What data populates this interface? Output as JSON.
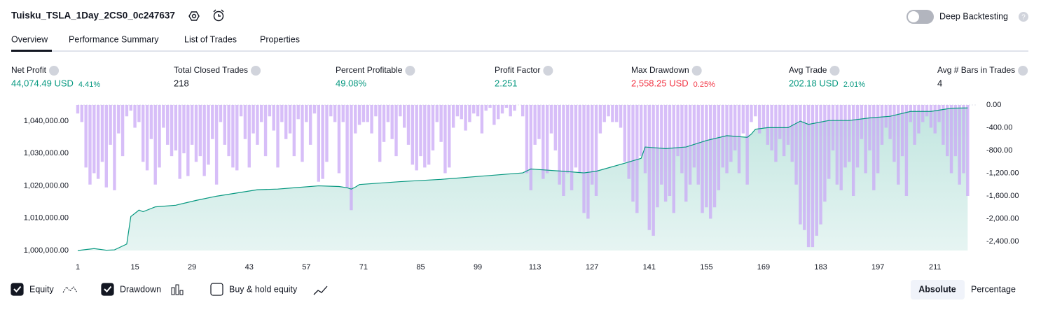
{
  "header": {
    "title": "Tuisku_TSLA_1Day_2CS0_0c247637",
    "deep_backtesting": "Deep Backtesting"
  },
  "tabs": [
    "Overview",
    "Performance Summary",
    "List of Trades",
    "Properties"
  ],
  "metrics": [
    {
      "label": "Net Profit",
      "value": "44,074.49 USD",
      "pct": "4.41%"
    },
    {
      "label": "Total Closed Trades",
      "value": "218"
    },
    {
      "label": "Percent Profitable",
      "value": "49.08%"
    },
    {
      "label": "Profit Factor",
      "value": "2.251"
    },
    {
      "label": "Max Drawdown",
      "value": "2,558.25 USD",
      "pct": "0.25%"
    },
    {
      "label": "Avg Trade",
      "value": "202.18 USD",
      "pct": "2.01%"
    },
    {
      "label": "Avg # Bars in Trades",
      "value": "4"
    }
  ],
  "chart_data": {
    "type": "equity-drawdown",
    "xlim": [
      1,
      221
    ],
    "xticks": [
      1,
      15,
      29,
      43,
      57,
      71,
      85,
      99,
      113,
      127,
      141,
      155,
      169,
      183,
      197,
      211
    ],
    "ylim": [
      1000000,
      1045000
    ],
    "yticks": [
      {
        "value": 1000000,
        "label": "1,000,000.00"
      },
      {
        "value": 1010000,
        "label": "1,010,000.00"
      },
      {
        "value": 1020000,
        "label": "1,020,000.00"
      },
      {
        "value": 1030000,
        "label": "1,030,000.00"
      },
      {
        "value": 1040000,
        "label": "1,040,000.00"
      }
    ],
    "y2lim": [
      -2560,
      0
    ],
    "y2ticks": [
      {
        "value": 0,
        "label": "0.00"
      },
      {
        "value": -400,
        "label": "-400.00"
      },
      {
        "value": -800,
        "label": "-800.00"
      },
      {
        "value": -1200,
        "label": "-1,200.00"
      },
      {
        "value": -1600,
        "label": "-1,600.00"
      },
      {
        "value": -2000,
        "label": "-2,000.00"
      },
      {
        "value": -2400,
        "label": "-2,400.00"
      }
    ],
    "series": [
      {
        "name": "Equity",
        "color": "#089981",
        "x": [
          1,
          5,
          8,
          10,
          13,
          14,
          15,
          16,
          17,
          20,
          25,
          30,
          35,
          40,
          45,
          50,
          55,
          60,
          65,
          67,
          68,
          69,
          70,
          80,
          90,
          100,
          110,
          112,
          120,
          125,
          128,
          135,
          139,
          140,
          145,
          150,
          155,
          160,
          165,
          166,
          167,
          170,
          175,
          178,
          180,
          185,
          190,
          195,
          200,
          205,
          210,
          215,
          219
        ],
        "values": [
          1000000,
          1000600,
          1000100,
          1000200,
          1002000,
          1010500,
          1011500,
          1012500,
          1012000,
          1013500,
          1014000,
          1015500,
          1016800,
          1017800,
          1018800,
          1019000,
          1019500,
          1020000,
          1019800,
          1019400,
          1019000,
          1019600,
          1020400,
          1021300,
          1022000,
          1023000,
          1024000,
          1025200,
          1024500,
          1024000,
          1024500,
          1027000,
          1028500,
          1032000,
          1031500,
          1032000,
          1034000,
          1035500,
          1035000,
          1036000,
          1037500,
          1038000,
          1038000,
          1040000,
          1039000,
          1040200,
          1040200,
          1041000,
          1041500,
          1043000,
          1043000,
          1044000,
          1044074
        ]
      },
      {
        "name": "Drawdown",
        "color": "#c9a8f5",
        "axis": "y2",
        "values": [
          -150,
          -300,
          -1100,
          -1400,
          -1200,
          -1300,
          -1000,
          -1450,
          -700,
          -1500,
          -500,
          -900,
          -200,
          -100,
          -400,
          -300,
          -1000,
          -1150,
          -600,
          -1400,
          -1100,
          -400,
          -700,
          -900,
          -800,
          -1300,
          -850,
          -1250,
          -700,
          -1000,
          -900,
          -1250,
          -1050,
          -600,
          -1400,
          -300,
          -700,
          -900,
          -1100,
          -1150,
          -200,
          -600,
          -1100,
          -500,
          -700,
          -300,
          -900,
          -200,
          -450,
          -1100,
          -300,
          -600,
          -500,
          -900,
          -250,
          -1000,
          -300,
          -700,
          -150,
          -1350,
          -1300,
          -1000,
          -200,
          -300,
          -1200,
          -300,
          -1450,
          -1850,
          -500,
          -350,
          -300,
          -300,
          -500,
          -200,
          -1000,
          -650,
          -300,
          -600,
          -900,
          -200,
          -400,
          -700,
          -1050,
          -1150,
          -900,
          -1100,
          -1050,
          -800,
          -300,
          -650,
          -1200,
          -1100,
          -400,
          -200,
          -250,
          -450,
          -300,
          -150,
          -200,
          -500,
          -100,
          -50,
          -350,
          -250,
          -150,
          -50,
          -200,
          -100,
          0,
          -200,
          -1200,
          -1500,
          -700,
          -600,
          -1300,
          -1200,
          -500,
          -800,
          -1400,
          -1600,
          -1200,
          -1500,
          -1100,
          -1200,
          -1900,
          -2000,
          -1400,
          -1600,
          -500,
          -300,
          -200,
          -300,
          -300,
          -400,
          -1000,
          -1300,
          -1700,
          -1900,
          -900,
          -1200,
          -2200,
          -2300,
          -1800,
          -1400,
          -1700,
          -1600,
          -1900,
          -900,
          -1200,
          -1700,
          -1400,
          -1100,
          -1400,
          -1900,
          -1800,
          -2000,
          -1800,
          -1500,
          -1100,
          -1200,
          -1000,
          -800,
          -1200,
          -500,
          -1400,
          -300,
          -200,
          -500,
          -400,
          -700,
          -800,
          -1000,
          -600,
          -900,
          -700,
          -1000,
          -1400,
          -2100,
          -2200,
          -2500,
          -2500,
          -2300,
          -2100,
          -1700,
          -1300,
          -800,
          -1400,
          -1500,
          -1100,
          -1000,
          -1600,
          -1100,
          -600,
          -1200,
          -800,
          -1500,
          -1200,
          -700,
          -400,
          -600,
          -1000,
          -1400,
          -900,
          -1600,
          -300,
          -700,
          -500,
          -300,
          -200,
          -400,
          -500,
          -300,
          -700,
          -900,
          -1200,
          -900,
          -1400,
          -1200,
          -1600
        ]
      }
    ]
  },
  "buy_hold": "Buy & hold equity",
  "views": [
    "Absolute",
    "Percentage"
  ]
}
